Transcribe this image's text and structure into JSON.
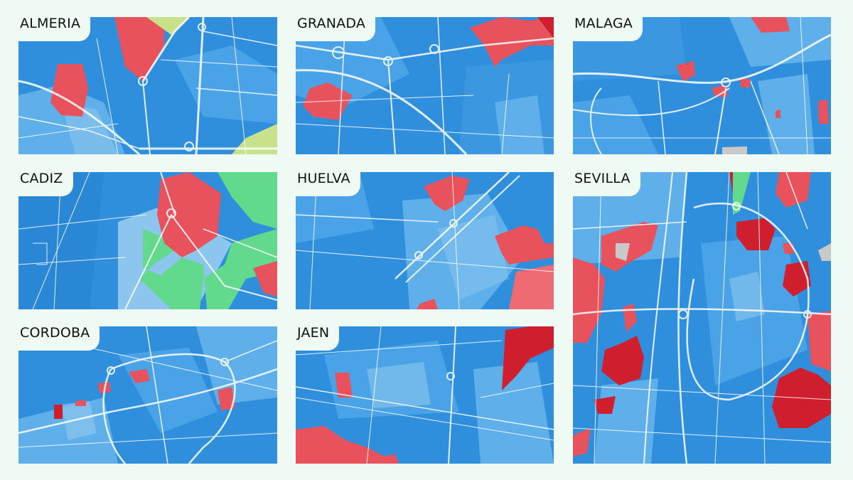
{
  "colors": {
    "background": "#eefaf3",
    "base_blue": "#2f8fdc",
    "light_blue": "#5fb0ea",
    "pale_blue": "#8cc6ef",
    "red": "#e8525c",
    "dark_red": "#cf1f2e",
    "green": "#63d98e",
    "yellow_green": "#c7e28a",
    "grey": "#c9c9c9",
    "roads": "#ffffff"
  },
  "cities": [
    {
      "name": "ALMERÍA"
    },
    {
      "name": "GRANADA"
    },
    {
      "name": "MÁLAGA"
    },
    {
      "name": "CÁDIZ"
    },
    {
      "name": "HUELVA"
    },
    {
      "name": "SEVILLA"
    },
    {
      "name": "CÓRDOBA"
    },
    {
      "name": "JAÉN"
    }
  ]
}
